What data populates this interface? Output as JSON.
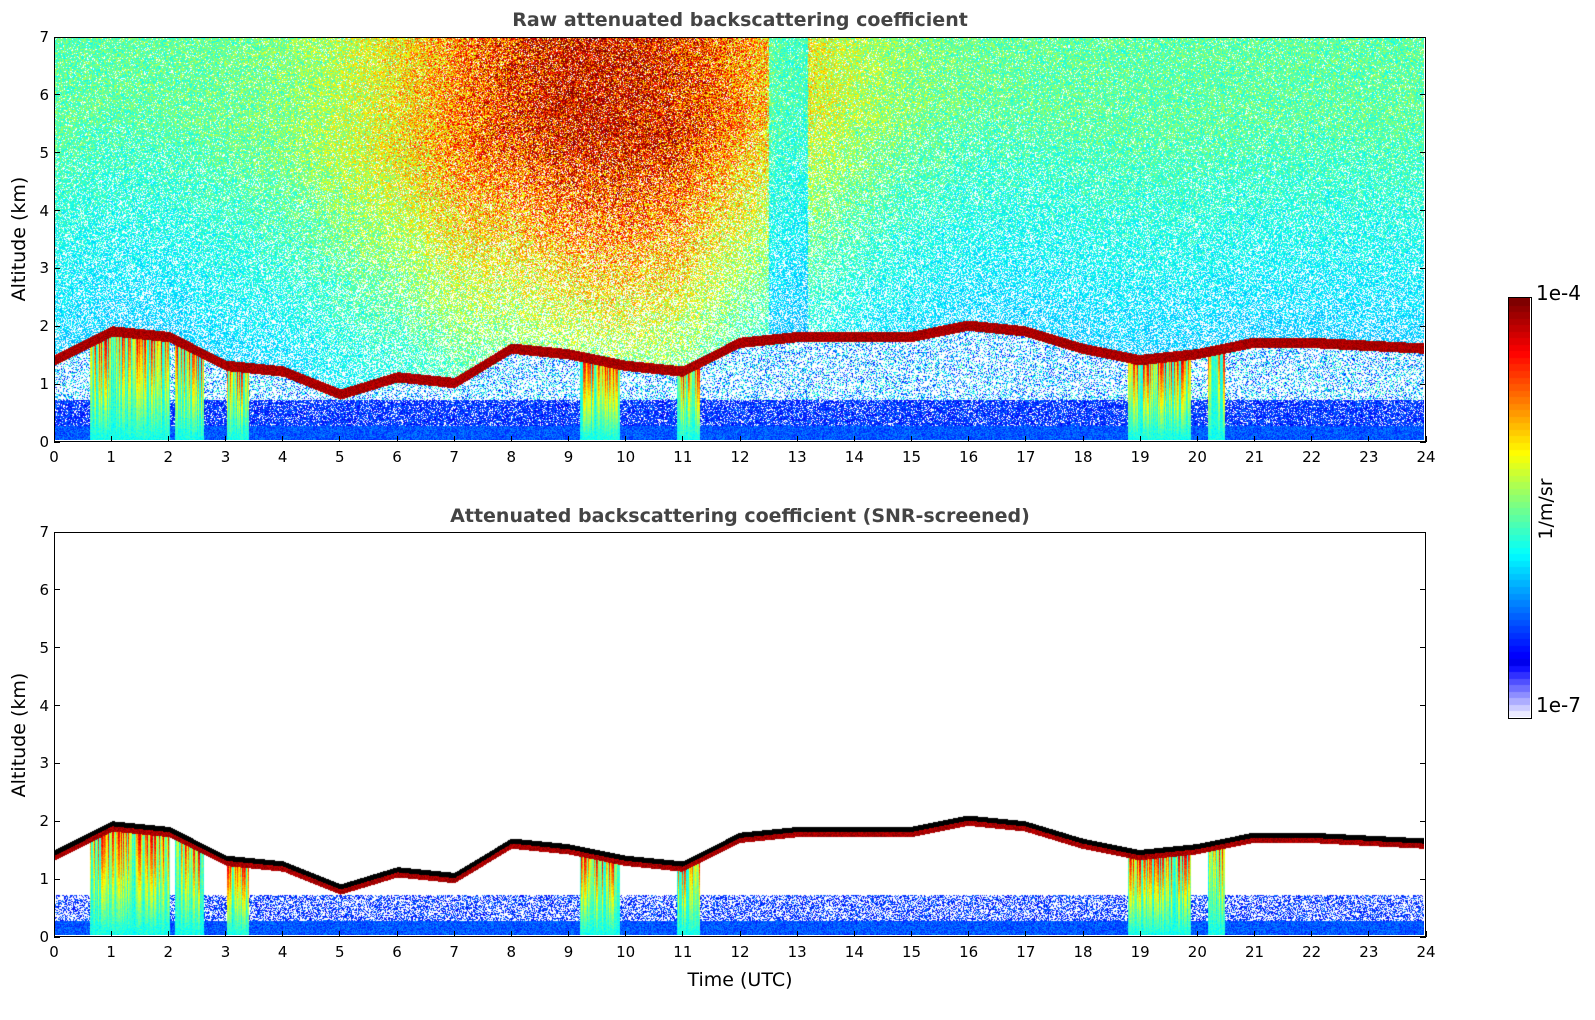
{
  "chart_data": [
    {
      "type": "heatmap",
      "title": "Raw attenuated backscattering coefficient",
      "xlabel": "",
      "ylabel": "Altitude (km)",
      "xlim": [
        0,
        24
      ],
      "ylim": [
        0,
        7
      ],
      "xticks": [
        "0",
        "1",
        "2",
        "3",
        "4",
        "5",
        "6",
        "7",
        "8",
        "9",
        "10",
        "11",
        "12",
        "13",
        "14",
        "15",
        "16",
        "17",
        "18",
        "19",
        "20",
        "21",
        "22",
        "23",
        "24"
      ],
      "yticks": [
        "0",
        "1",
        "2",
        "3",
        "4",
        "5",
        "6",
        "7"
      ],
      "colorscale": "jet",
      "color_range": [
        "1e-7",
        "1e-4"
      ],
      "features": {
        "cloud_base_km": [
          [
            0,
            1.4
          ],
          [
            1,
            1.9
          ],
          [
            2,
            1.8
          ],
          [
            3,
            1.3
          ],
          [
            4,
            1.2
          ],
          [
            5,
            0.8
          ],
          [
            6,
            1.1
          ],
          [
            7,
            1.0
          ],
          [
            8,
            1.6
          ],
          [
            9,
            1.5
          ],
          [
            10,
            1.3
          ],
          [
            11,
            1.2
          ],
          [
            12,
            1.7
          ],
          [
            13,
            1.8
          ],
          [
            14,
            1.8
          ],
          [
            15,
            1.8
          ],
          [
            16,
            2.0
          ],
          [
            17,
            1.9
          ],
          [
            18,
            1.6
          ],
          [
            19,
            1.4
          ],
          [
            20,
            1.5
          ],
          [
            21,
            1.7
          ],
          [
            22,
            1.7
          ],
          [
            23,
            1.65
          ],
          [
            24,
            1.6
          ]
        ],
        "precip_shafts_hours": [
          [
            0.6,
            2.0
          ],
          [
            2.1,
            2.6
          ],
          [
            3.0,
            3.4
          ],
          [
            9.2,
            9.9
          ],
          [
            10.9,
            11.3
          ],
          [
            18.8,
            19.9
          ],
          [
            20.2,
            20.5
          ]
        ],
        "noise_level": "high above 3 km, strongest 6 to 13 UTC"
      }
    },
    {
      "type": "heatmap",
      "title": "Attenuated backscattering coefficient (SNR-screened)",
      "xlabel": "Time (UTC)",
      "ylabel": "Altitude (km)",
      "xlim": [
        0,
        24
      ],
      "ylim": [
        0,
        7
      ],
      "xticks": [
        "0",
        "1",
        "2",
        "3",
        "4",
        "5",
        "6",
        "7",
        "8",
        "9",
        "10",
        "11",
        "12",
        "13",
        "14",
        "15",
        "16",
        "17",
        "18",
        "19",
        "20",
        "21",
        "22",
        "23",
        "24"
      ],
      "yticks": [
        "0",
        "1",
        "2",
        "3",
        "4",
        "5",
        "6",
        "7"
      ],
      "colorscale": "jet",
      "color_range": [
        "1e-7",
        "1e-4"
      ],
      "features": {
        "screening": "noise removed above cloud base",
        "cloud_top_color": "black saturated"
      }
    }
  ],
  "colorbar": {
    "max_label": "1e-4",
    "min_label": "1e-7",
    "unit": "1/m/sr"
  }
}
